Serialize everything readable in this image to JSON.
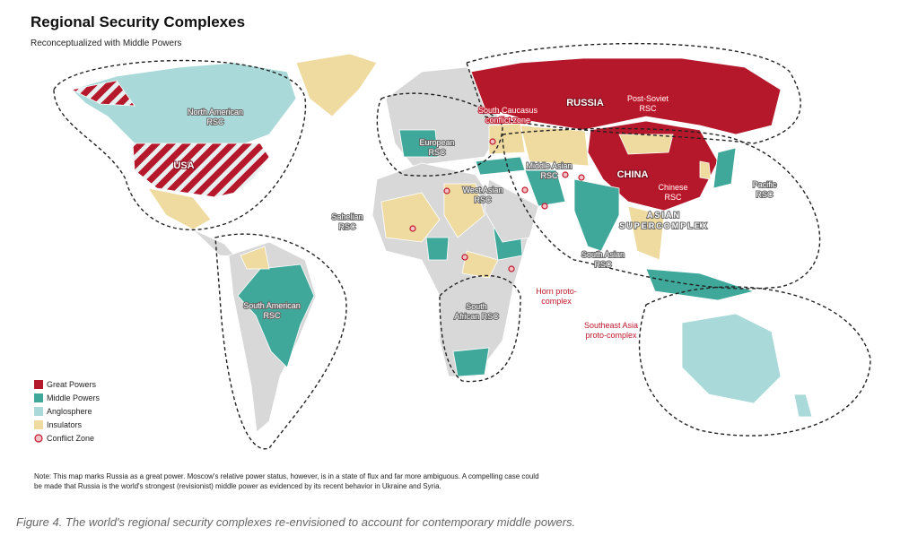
{
  "header": {
    "title": "Regional Security Complexes",
    "subtitle": "Reconceptualized with Middle Powers"
  },
  "map": {
    "labels": {
      "north_american": [
        "North American",
        "RSC"
      ],
      "usa": [
        "USA"
      ],
      "european": [
        "European",
        "RSC"
      ],
      "russia": [
        "RUSSIA"
      ],
      "post_soviet": [
        "Post-Soviet",
        "RSC"
      ],
      "south_caucasus": [
        "South Caucasus",
        "conflict zone"
      ],
      "middle_asian": [
        "Middle Asian",
        "RSC"
      ],
      "china": [
        "CHINA"
      ],
      "chinese": [
        "Chinese",
        "RSC"
      ],
      "west_asian": [
        "West Asian",
        "RSC"
      ],
      "sahelian": [
        "Sahelian",
        "RSC"
      ],
      "asian_supercomplex": [
        "ASIAN",
        "SUPERCOMPLEX"
      ],
      "pacific": [
        "Pacific",
        "RSC"
      ],
      "south_asian": [
        "South Asian",
        "RSC"
      ],
      "horn": [
        "Horn proto-",
        "complex"
      ],
      "south_american": [
        "South American",
        "RSC"
      ],
      "south_african": [
        "South",
        "African RSC"
      ],
      "southeast_asia": [
        "Southeast Asia",
        "proto-complex"
      ]
    }
  },
  "legend": {
    "items": [
      "Great Powers",
      "Middle Powers",
      "Anglosphere",
      "Insulators",
      "Conflict Zone"
    ]
  },
  "note": [
    "Note: This map marks Russia as a great power. Moscow's relative power status, however, is in a state of flux and far more ambiguous. A compelling case could",
    "be made that Russia is the world's strongest (revisionist) middle power as evidenced by its recent behavior in Ukraine and Syria."
  ],
  "caption": "Figure 4. The world's regional security complexes re-envisioned to account for contemporary middle powers."
}
